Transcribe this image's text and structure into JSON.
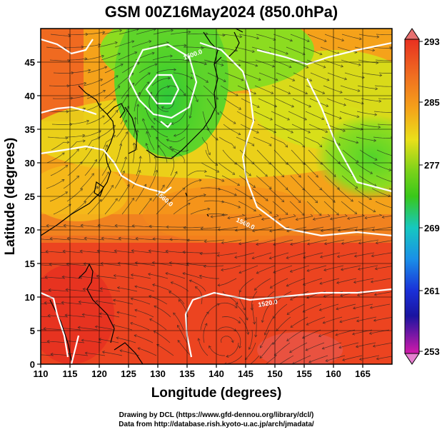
{
  "title": "GSM 00Z16May2024 (850.0hPa)",
  "x_axis": {
    "label": "Longitude (degrees)",
    "range": [
      110,
      170
    ],
    "ticks": [
      "110",
      "115",
      "120",
      "125",
      "130",
      "135",
      "140",
      "145",
      "150",
      "155",
      "160",
      "165"
    ]
  },
  "y_axis": {
    "label": "Latitude (degrees)",
    "range": [
      0,
      50
    ],
    "ticks": [
      "0",
      "5",
      "10",
      "15",
      "20",
      "25",
      "30",
      "35",
      "40",
      "45"
    ]
  },
  "colorbar": {
    "ticks": [
      "293",
      "285",
      "277",
      "269",
      "261",
      "253"
    ],
    "range": [
      253,
      293
    ],
    "colors": {
      "top": "#e83020",
      "orange": "#f5a21a",
      "yellow": "#e9e01a",
      "green": "#39c81a",
      "cyan": "#16c8c0",
      "blue": "#1a5ff0",
      "navy": "#1a14a0",
      "magenta": "#d21aaa"
    }
  },
  "contour_labels": [
    "1500.0",
    "1520.0",
    "1560.0",
    "1560.0"
  ],
  "credits": {
    "line1": "Drawing by DCL (https://www.gfd-dennou.org/library/dcl/)",
    "line2": "Data from http://database.rish.kyoto-u.ac.jp/arch/jmadata/"
  }
}
